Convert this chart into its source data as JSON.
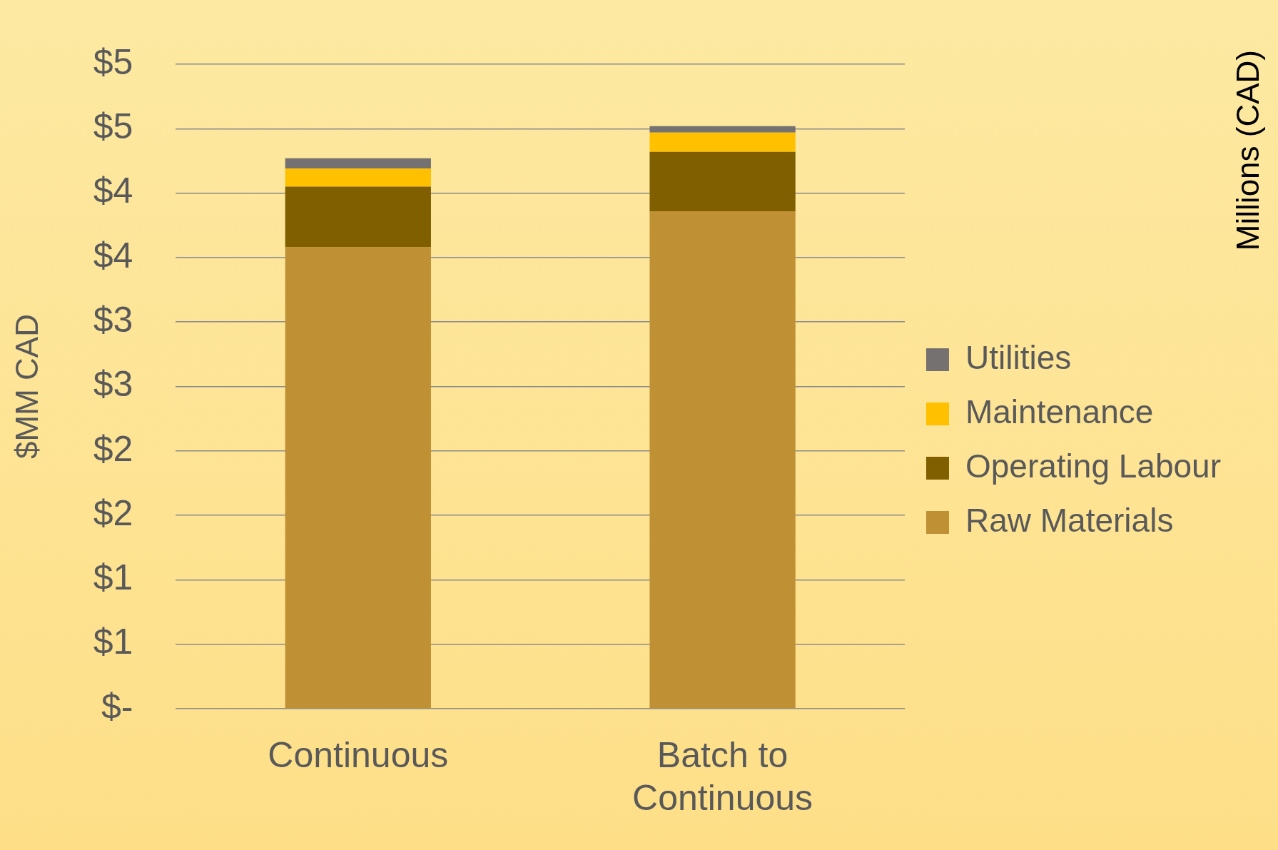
{
  "chart_data": {
    "type": "bar",
    "stacked": true,
    "ylabel": "$MM CAD",
    "categories": [
      "Continuous",
      "Batch to Continuous"
    ],
    "series": [
      {
        "name": "Raw Materials",
        "color": "#c09035",
        "values": [
          3.58,
          3.86
        ]
      },
      {
        "name": "Operating Labour",
        "color": "#7f5f00",
        "values": [
          0.47,
          0.46
        ]
      },
      {
        "name": "Maintenance",
        "color": "#ffc000",
        "values": [
          0.14,
          0.15
        ]
      },
      {
        "name": "Utilities",
        "color": "#767171",
        "values": [
          0.08,
          0.05
        ]
      }
    ],
    "ylim": [
      0,
      5
    ],
    "yticks": [
      {
        "value": 0,
        "label": "$-"
      },
      {
        "value": 0.5,
        "label": "$1"
      },
      {
        "value": 1,
        "label": "$1"
      },
      {
        "value": 1.5,
        "label": "$2"
      },
      {
        "value": 2,
        "label": "$2"
      },
      {
        "value": 2.5,
        "label": "$3"
      },
      {
        "value": 3,
        "label": "$3"
      },
      {
        "value": 3.5,
        "label": "$4"
      },
      {
        "value": 4,
        "label": "$4"
      },
      {
        "value": 4.5,
        "label": "$5"
      },
      {
        "value": 5,
        "label": "$5"
      }
    ],
    "grid": "y",
    "legend": "right",
    "annotations": [
      "Millions (CAD)"
    ]
  }
}
